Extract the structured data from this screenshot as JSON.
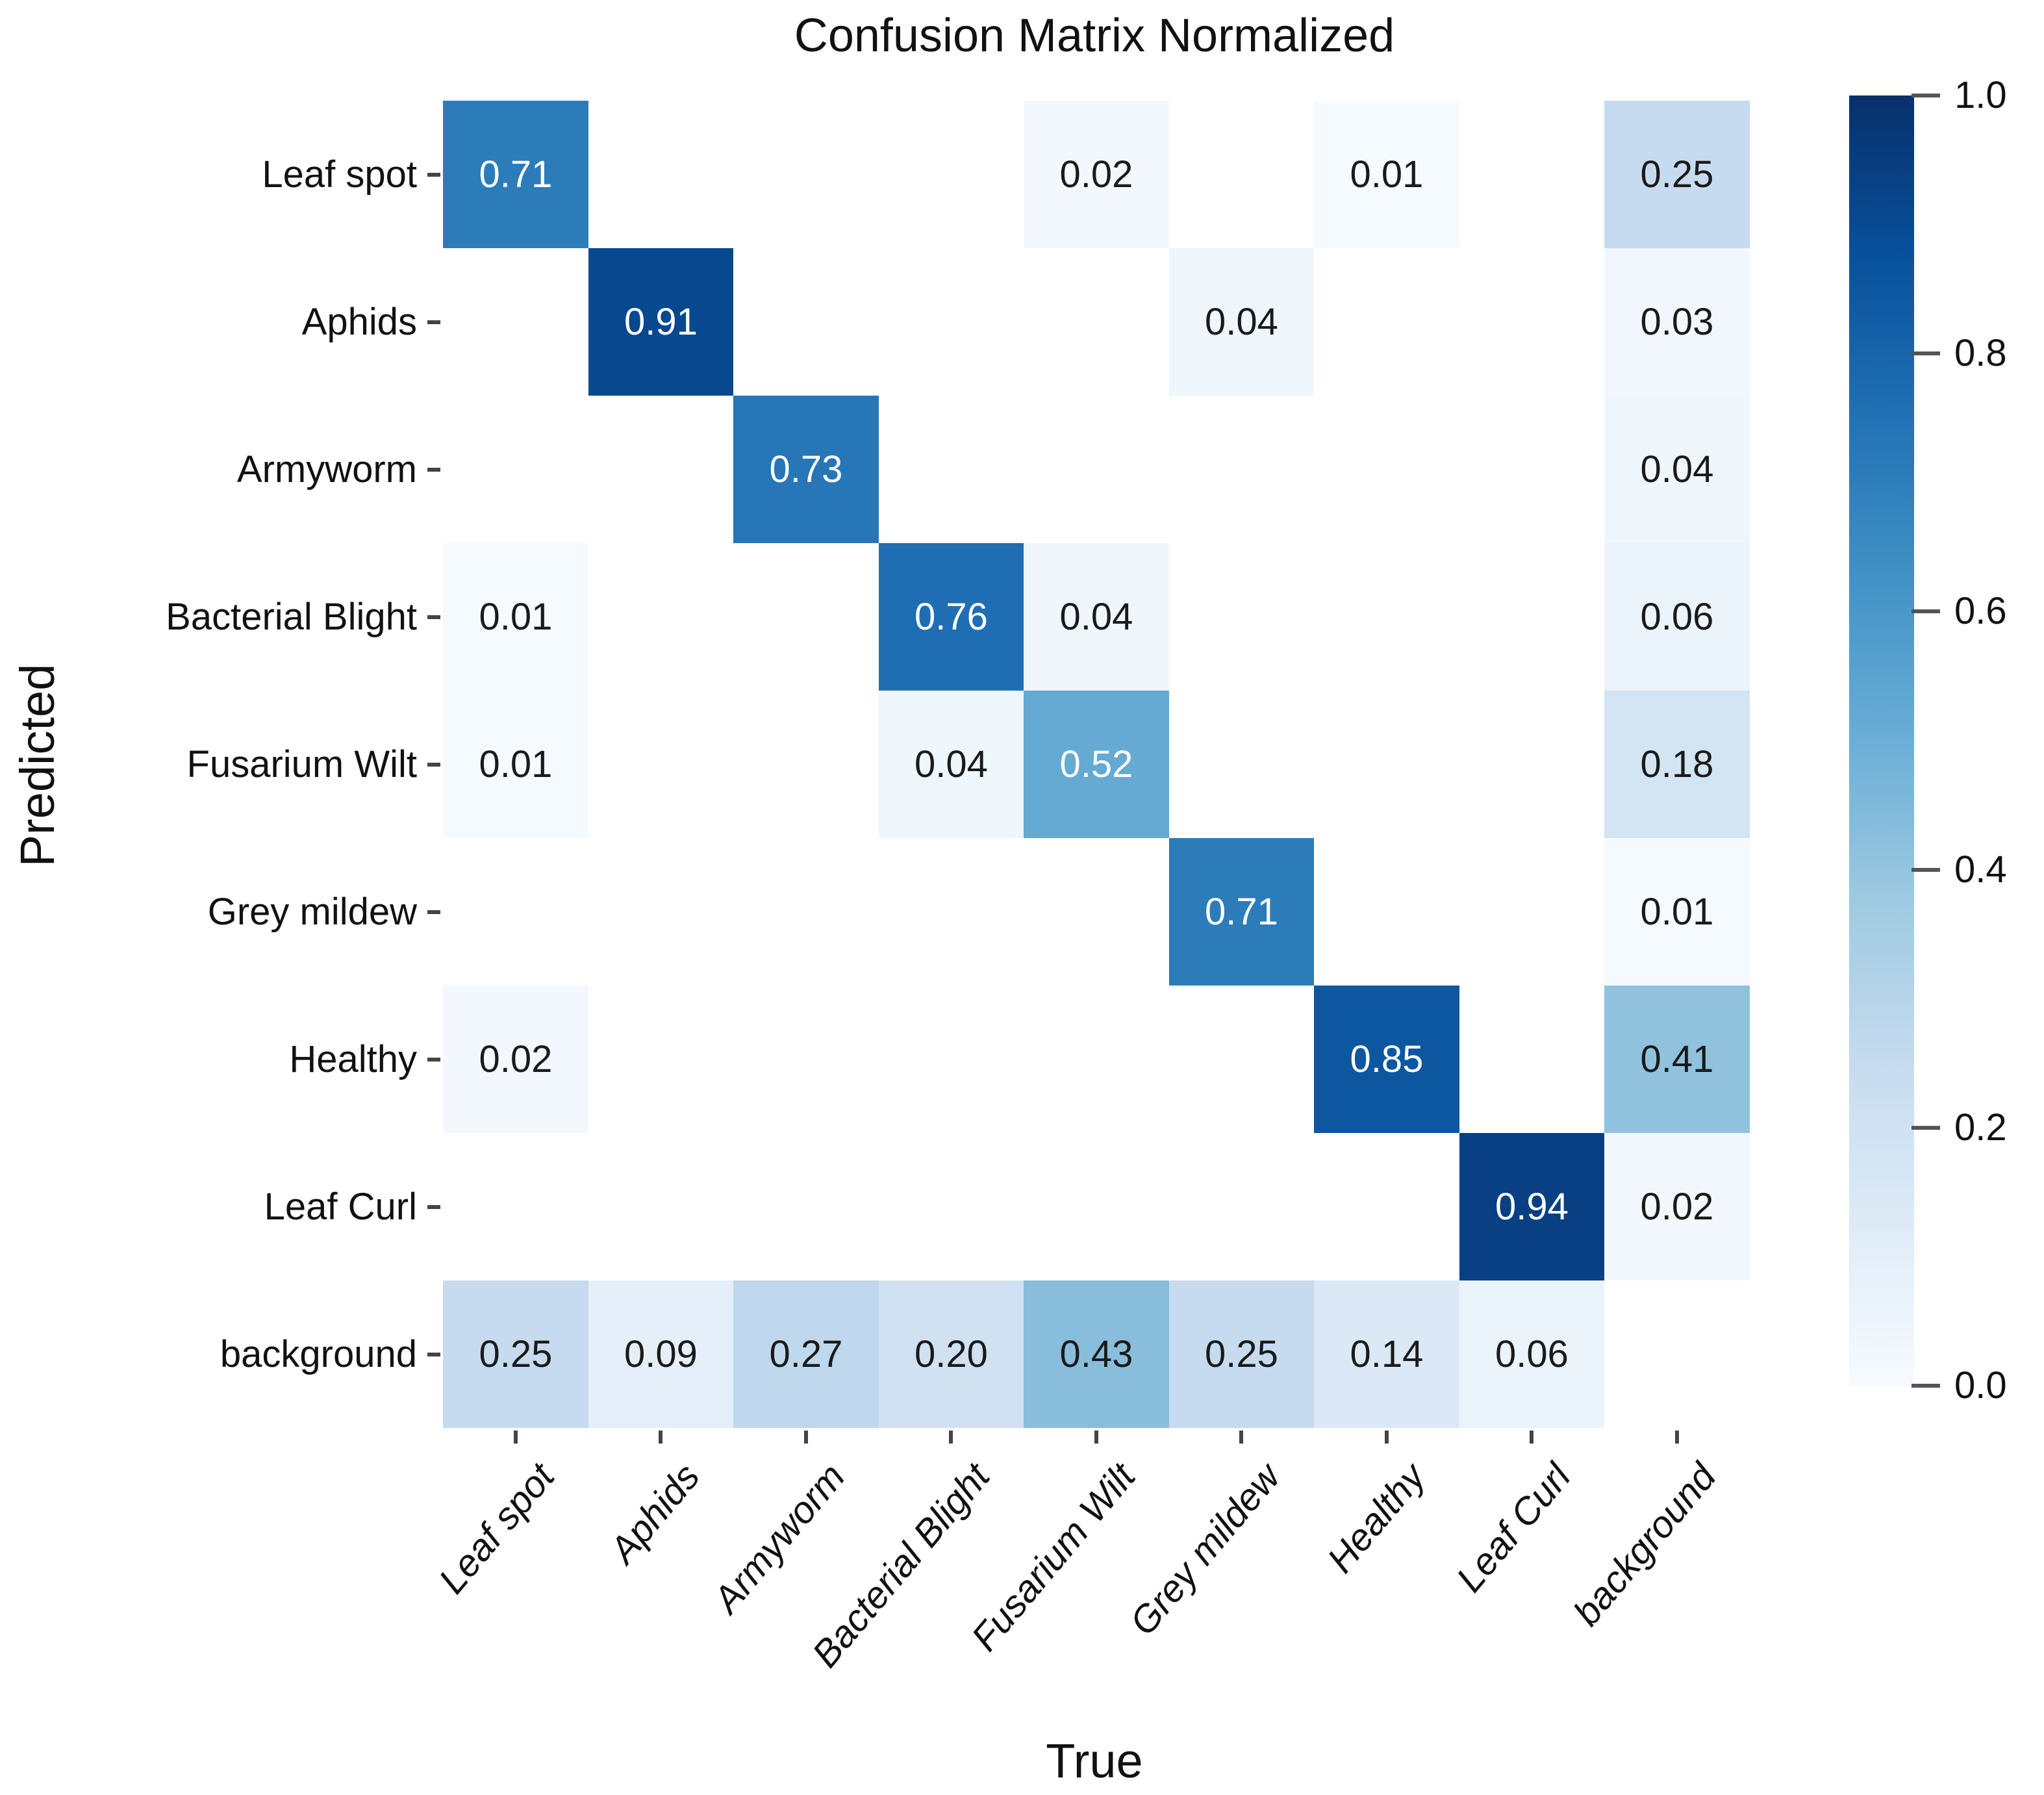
{
  "chart_data": {
    "type": "heatmap",
    "title": "Confusion Matrix Normalized",
    "xlabel": "True",
    "ylabel": "Predicted",
    "x_categories": [
      "Leaf spot",
      "Aphids",
      "Armyworm",
      "Bacterial Blight",
      "Fusarium Wilt",
      "Grey mildew",
      "Healthy",
      "Leaf Curl",
      "background"
    ],
    "y_categories": [
      "Leaf spot",
      "Aphids",
      "Armyworm",
      "Bacterial Blight",
      "Fusarium Wilt",
      "Grey mildew",
      "Healthy",
      "Leaf Curl",
      "background"
    ],
    "matrix": [
      [
        0.71,
        null,
        null,
        null,
        0.02,
        null,
        0.01,
        null,
        0.25
      ],
      [
        null,
        0.91,
        null,
        null,
        null,
        0.04,
        null,
        null,
        0.03
      ],
      [
        null,
        null,
        0.73,
        null,
        null,
        null,
        null,
        null,
        0.04
      ],
      [
        0.01,
        null,
        null,
        0.76,
        0.04,
        null,
        null,
        null,
        0.06
      ],
      [
        0.01,
        null,
        null,
        0.04,
        0.52,
        null,
        null,
        null,
        0.18
      ],
      [
        null,
        null,
        null,
        null,
        null,
        0.71,
        null,
        null,
        0.01
      ],
      [
        0.02,
        null,
        null,
        null,
        null,
        null,
        0.85,
        null,
        0.41
      ],
      [
        null,
        null,
        null,
        null,
        null,
        null,
        null,
        0.94,
        0.02
      ],
      [
        0.25,
        0.09,
        0.27,
        0.2,
        0.43,
        0.25,
        0.14,
        0.06,
        null
      ]
    ],
    "value_range": [
      0.0,
      1.0
    ],
    "grid": false,
    "legend_position": "right-colorbar",
    "colorbar_tick_labels": [
      "1.0",
      "0.8",
      "0.6",
      "0.4",
      "0.2",
      "0.0"
    ],
    "colormap_name": "Blues",
    "colormap_stops": [
      [
        0.0,
        "#f7fbff"
      ],
      [
        0.125,
        "#deebf7"
      ],
      [
        0.25,
        "#c6dbef"
      ],
      [
        0.375,
        "#9ecae1"
      ],
      [
        0.5,
        "#6baed6"
      ],
      [
        0.625,
        "#4292c6"
      ],
      [
        0.75,
        "#2171b5"
      ],
      [
        0.875,
        "#08519c"
      ],
      [
        1.0,
        "#08306b"
      ]
    ],
    "null_cell_color": "#ffffff",
    "annotation_light_text": "#ffffff",
    "annotation_dark_text": "#1a1a1a",
    "annotation_threshold": 0.5,
    "tick_mark_color": "#444444"
  }
}
